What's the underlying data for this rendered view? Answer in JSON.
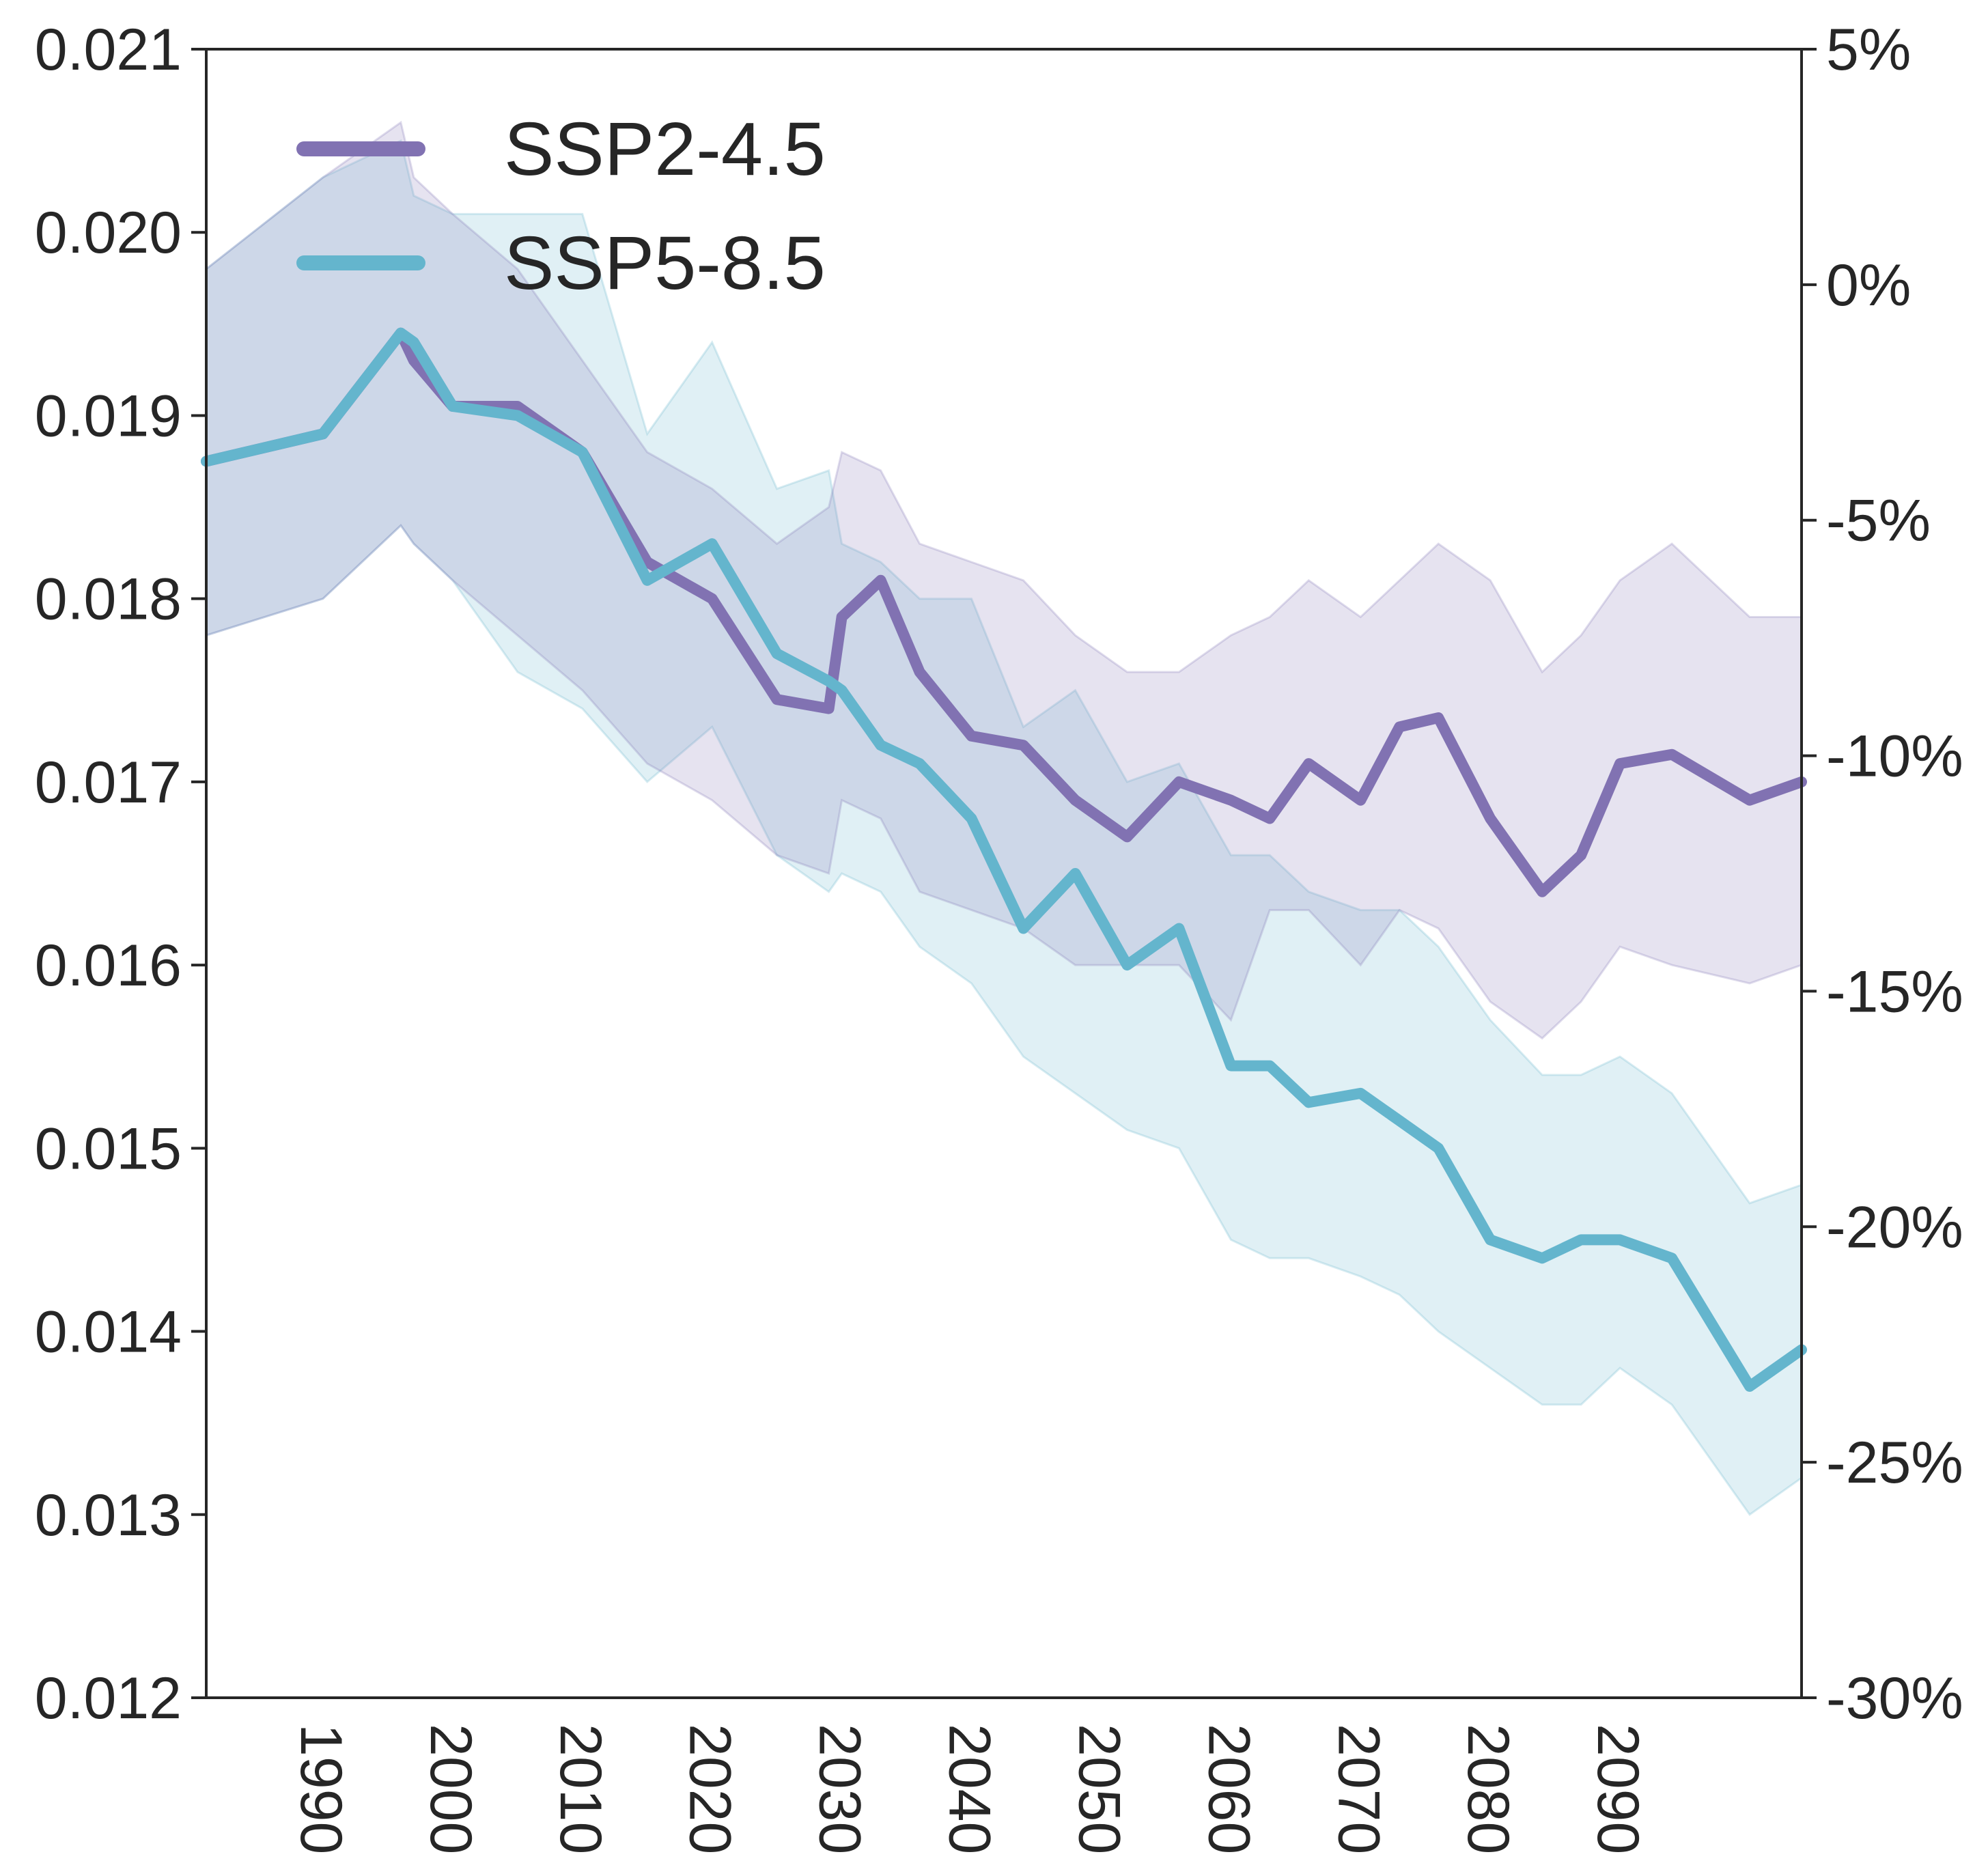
{
  "chart_data": {
    "type": "line",
    "title": "",
    "xlabel": "",
    "ylabel": "",
    "xlim": [
      1981,
      2104
    ],
    "ylim": [
      0.012,
      0.021
    ],
    "secondary_ylim_percent": [
      -30,
      5
    ],
    "grid": false,
    "legend_position": "top-left",
    "x_ticks": [
      "1990",
      "2000",
      "2010",
      "2020",
      "2030",
      "2040",
      "2050",
      "2060",
      "2070",
      "2080",
      "2090"
    ],
    "y_ticks": [
      "0.012",
      "0.013",
      "0.014",
      "0.015",
      "0.016",
      "0.017",
      "0.018",
      "0.019",
      "0.020",
      "0.021"
    ],
    "y2_ticks": [
      "-30%",
      "-25%",
      "-20%",
      "-15%",
      "-10%",
      "-5%",
      "0%",
      "5%"
    ],
    "x": [
      1981,
      1990,
      1996,
      1997,
      2000,
      2005,
      2010,
      2015,
      2020,
      2025,
      2029,
      2030,
      2033,
      2036,
      2040,
      2044,
      2048,
      2052,
      2056,
      2060,
      2063,
      2066,
      2070,
      2073,
      2076,
      2080,
      2084,
      2087,
      2090,
      2094,
      2100,
      2104
    ],
    "series": [
      {
        "name": "SSP2-4.5",
        "color": "#8172b2",
        "values": [
          0.01875,
          0.0189,
          0.01945,
          0.0193,
          0.01905,
          0.01905,
          0.0188,
          0.0182,
          0.018,
          0.01745,
          0.0174,
          0.0179,
          0.0181,
          0.0176,
          0.01725,
          0.0172,
          0.0169,
          0.0167,
          0.017,
          0.0169,
          0.0168,
          0.0171,
          0.0169,
          0.0173,
          0.01735,
          0.0168,
          0.0164,
          0.0166,
          0.0171,
          0.01715,
          0.0169,
          0.017
        ],
        "band_upper": [
          0.0198,
          0.0203,
          0.0206,
          0.0203,
          0.0201,
          0.0198,
          0.0193,
          0.0188,
          0.0186,
          0.0183,
          0.0185,
          0.0188,
          0.0187,
          0.0183,
          0.0182,
          0.0181,
          0.0178,
          0.0176,
          0.0176,
          0.0178,
          0.0179,
          0.0181,
          0.0179,
          0.0181,
          0.0183,
          0.0181,
          0.0176,
          0.0178,
          0.0181,
          0.0183,
          0.0179,
          0.0179
        ],
        "band_lower": [
          0.0178,
          0.018,
          0.0184,
          0.0183,
          0.0181,
          0.0178,
          0.0175,
          0.0171,
          0.0169,
          0.0166,
          0.0165,
          0.0169,
          0.0168,
          0.0164,
          0.0163,
          0.0162,
          0.016,
          0.016,
          0.016,
          0.0157,
          0.0163,
          0.0163,
          0.016,
          0.0163,
          0.0162,
          0.0158,
          0.0156,
          0.0158,
          0.0161,
          0.016,
          0.0159,
          0.016
        ]
      },
      {
        "name": "SSP5-8.5",
        "color": "#64b5cd",
        "values": [
          0.01875,
          0.0189,
          0.01945,
          0.0194,
          0.01905,
          0.019,
          0.0188,
          0.0181,
          0.0183,
          0.0177,
          0.01755,
          0.0175,
          0.0172,
          0.0171,
          0.0168,
          0.0162,
          0.0165,
          0.016,
          0.0162,
          0.01545,
          0.01545,
          0.01525,
          0.0153,
          0.01515,
          0.015,
          0.0145,
          0.0144,
          0.0145,
          0.0145,
          0.0144,
          0.0137,
          0.0139
        ],
        "band_upper": [
          0.0198,
          0.0203,
          0.0205,
          0.0202,
          0.0201,
          0.0201,
          0.0201,
          0.0189,
          0.0194,
          0.0186,
          0.0187,
          0.0183,
          0.0182,
          0.018,
          0.018,
          0.0173,
          0.0175,
          0.017,
          0.0171,
          0.0166,
          0.0166,
          0.0164,
          0.0163,
          0.0163,
          0.0161,
          0.0157,
          0.0154,
          0.0154,
          0.0155,
          0.0153,
          0.0147,
          0.0148
        ],
        "band_lower": [
          0.0178,
          0.018,
          0.0184,
          0.0183,
          0.0181,
          0.0176,
          0.0174,
          0.017,
          0.0173,
          0.0166,
          0.0164,
          0.0165,
          0.0164,
          0.0161,
          0.0159,
          0.0155,
          0.0153,
          0.0151,
          0.015,
          0.0145,
          0.0144,
          0.0144,
          0.0143,
          0.0142,
          0.014,
          0.0138,
          0.0136,
          0.0136,
          0.0138,
          0.0136,
          0.013,
          0.0132
        ]
      }
    ]
  }
}
